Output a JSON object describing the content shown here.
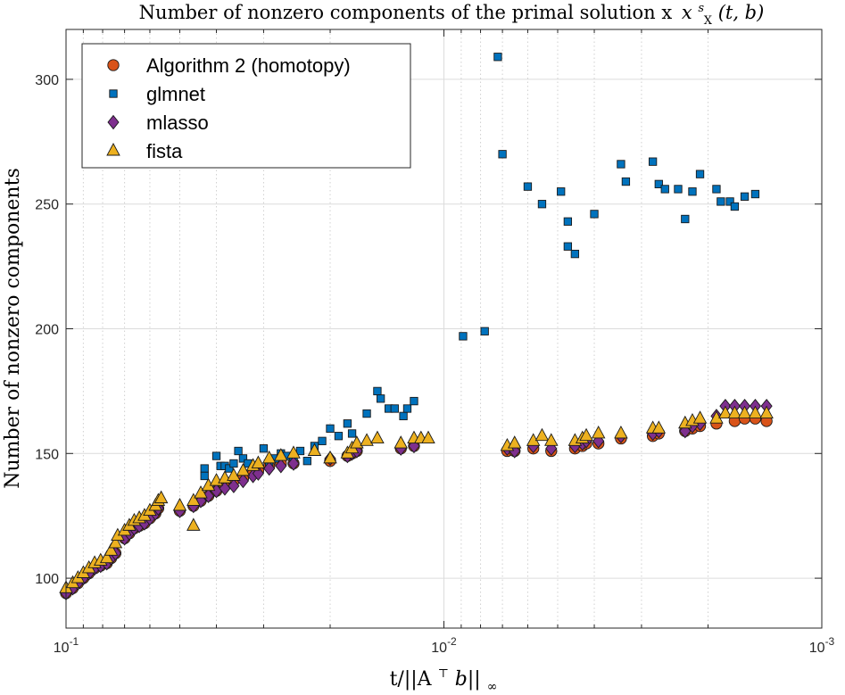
{
  "chart_data": {
    "type": "scatter",
    "title": "Number of nonzero components of the primal solution x",
    "title_math": {
      "base": "x",
      "sup": "s",
      "sub": "X",
      "args": "(t, b)"
    },
    "xlabel": "t/||A",
    "xlabel_math": {
      "sup": "⊤",
      "mid": "b||",
      "sub": "∞"
    },
    "ylabel": "Number of nonzero components",
    "xscale": "log",
    "x_reversed": true,
    "xlim": [
      0.1,
      0.001
    ],
    "ylim": [
      80,
      320
    ],
    "grid": true,
    "legend_position": "top-left",
    "x_ticks": [
      {
        "value": 0.1,
        "base": "10",
        "exp": "-1"
      },
      {
        "value": 0.01,
        "base": "10",
        "exp": "-2"
      },
      {
        "value": 0.001,
        "base": "10",
        "exp": "-3"
      }
    ],
    "y_ticks": [
      100,
      150,
      200,
      250,
      300
    ],
    "series": [
      {
        "name": "Algorithm 2 (homotopy)",
        "marker": "circle",
        "color": "#D95319",
        "points": [
          [
            0.1,
            94
          ],
          [
            0.096,
            96
          ],
          [
            0.093,
            98
          ],
          [
            0.09,
            100
          ],
          [
            0.087,
            102
          ],
          [
            0.084,
            104
          ],
          [
            0.081,
            105
          ],
          [
            0.078,
            106
          ],
          [
            0.076,
            108
          ],
          [
            0.074,
            110
          ],
          [
            0.07,
            116
          ],
          [
            0.068,
            118
          ],
          [
            0.066,
            120
          ],
          [
            0.064,
            121
          ],
          [
            0.062,
            122
          ],
          [
            0.06,
            124
          ],
          [
            0.058,
            126
          ],
          [
            0.057,
            128
          ],
          [
            0.05,
            127
          ],
          [
            0.046,
            129
          ],
          [
            0.044,
            131
          ],
          [
            0.042,
            133
          ],
          [
            0.04,
            135
          ],
          [
            0.038,
            137
          ],
          [
            0.036,
            139
          ],
          [
            0.034,
            140
          ],
          [
            0.032,
            142
          ],
          [
            0.031,
            143
          ],
          [
            0.029,
            145
          ],
          [
            0.027,
            146
          ],
          [
            0.025,
            146
          ],
          [
            0.02,
            147
          ],
          [
            0.018,
            149
          ],
          [
            0.0175,
            150
          ],
          [
            0.017,
            151
          ],
          [
            0.013,
            152
          ],
          [
            0.012,
            153
          ],
          [
            0.0068,
            151
          ],
          [
            0.0065,
            151
          ],
          [
            0.0058,
            152
          ],
          [
            0.0052,
            151
          ],
          [
            0.0045,
            152
          ],
          [
            0.0043,
            153
          ],
          [
            0.0042,
            154
          ],
          [
            0.0039,
            154
          ],
          [
            0.0034,
            156
          ],
          [
            0.0028,
            157
          ],
          [
            0.0027,
            158
          ],
          [
            0.0023,
            159
          ],
          [
            0.0022,
            160
          ],
          [
            0.0021,
            161
          ],
          [
            0.0019,
            162
          ],
          [
            0.0017,
            163
          ],
          [
            0.0016,
            164
          ],
          [
            0.0015,
            164
          ],
          [
            0.0014,
            163
          ]
        ]
      },
      {
        "name": "glmnet",
        "marker": "square",
        "color": "#0072BD",
        "points": [
          [
            0.043,
            144
          ],
          [
            0.043,
            141
          ],
          [
            0.04,
            149
          ],
          [
            0.039,
            145
          ],
          [
            0.038,
            145
          ],
          [
            0.037,
            144
          ],
          [
            0.036,
            146
          ],
          [
            0.035,
            151
          ],
          [
            0.034,
            148
          ],
          [
            0.033,
            146
          ],
          [
            0.03,
            152
          ],
          [
            0.029,
            146
          ],
          [
            0.028,
            148
          ],
          [
            0.027,
            150
          ],
          [
            0.026,
            149
          ],
          [
            0.025,
            148
          ],
          [
            0.024,
            151
          ],
          [
            0.023,
            147
          ],
          [
            0.022,
            153
          ],
          [
            0.021,
            155
          ],
          [
            0.02,
            160
          ],
          [
            0.019,
            157
          ],
          [
            0.018,
            162
          ],
          [
            0.0175,
            158
          ],
          [
            0.016,
            166
          ],
          [
            0.015,
            175
          ],
          [
            0.0147,
            172
          ],
          [
            0.014,
            168
          ],
          [
            0.0135,
            168
          ],
          [
            0.0128,
            165
          ],
          [
            0.0125,
            168
          ],
          [
            0.012,
            171
          ],
          [
            0.0089,
            197
          ],
          [
            0.0078,
            199
          ],
          [
            0.0072,
            309
          ],
          [
            0.007,
            270
          ],
          [
            0.006,
            257
          ],
          [
            0.0055,
            250
          ],
          [
            0.0049,
            255
          ],
          [
            0.0047,
            243
          ],
          [
            0.0047,
            233
          ],
          [
            0.0045,
            230
          ],
          [
            0.004,
            246
          ],
          [
            0.0034,
            266
          ],
          [
            0.0033,
            259
          ],
          [
            0.0028,
            267
          ],
          [
            0.0027,
            258
          ],
          [
            0.0026,
            256
          ],
          [
            0.0024,
            256
          ],
          [
            0.0023,
            244
          ],
          [
            0.0022,
            255
          ],
          [
            0.0021,
            262
          ],
          [
            0.0019,
            256
          ],
          [
            0.00185,
            251
          ],
          [
            0.00175,
            251
          ],
          [
            0.0017,
            249
          ],
          [
            0.0016,
            253
          ],
          [
            0.0015,
            254
          ]
        ]
      },
      {
        "name": "mlasso",
        "marker": "diamond",
        "color": "#7E2F8E",
        "points": [
          [
            0.1,
            94
          ],
          [
            0.096,
            96
          ],
          [
            0.093,
            98
          ],
          [
            0.09,
            100
          ],
          [
            0.087,
            102
          ],
          [
            0.084,
            104
          ],
          [
            0.081,
            105
          ],
          [
            0.078,
            106
          ],
          [
            0.076,
            108
          ],
          [
            0.074,
            110
          ],
          [
            0.07,
            116
          ],
          [
            0.068,
            118
          ],
          [
            0.066,
            120
          ],
          [
            0.064,
            121
          ],
          [
            0.062,
            122
          ],
          [
            0.06,
            124
          ],
          [
            0.058,
            126
          ],
          [
            0.057,
            128
          ],
          [
            0.05,
            127
          ],
          [
            0.046,
            129
          ],
          [
            0.044,
            131
          ],
          [
            0.042,
            133
          ],
          [
            0.04,
            135
          ],
          [
            0.038,
            136
          ],
          [
            0.036,
            137
          ],
          [
            0.034,
            139
          ],
          [
            0.032,
            141
          ],
          [
            0.031,
            142
          ],
          [
            0.029,
            144
          ],
          [
            0.027,
            145
          ],
          [
            0.025,
            146
          ],
          [
            0.02,
            148
          ],
          [
            0.018,
            149
          ],
          [
            0.0175,
            150
          ],
          [
            0.017,
            151
          ],
          [
            0.013,
            152
          ],
          [
            0.012,
            153
          ],
          [
            0.0068,
            152
          ],
          [
            0.0065,
            151
          ],
          [
            0.0058,
            153
          ],
          [
            0.0052,
            152
          ],
          [
            0.0045,
            153
          ],
          [
            0.0043,
            154
          ],
          [
            0.0042,
            155
          ],
          [
            0.0039,
            155
          ],
          [
            0.0034,
            157
          ],
          [
            0.0028,
            158
          ],
          [
            0.0027,
            159
          ],
          [
            0.0023,
            159
          ],
          [
            0.0022,
            161
          ],
          [
            0.0021,
            162
          ],
          [
            0.0019,
            165
          ],
          [
            0.0018,
            169
          ],
          [
            0.0017,
            169
          ],
          [
            0.0016,
            169
          ],
          [
            0.0015,
            169
          ],
          [
            0.0014,
            169
          ]
        ]
      },
      {
        "name": "fista",
        "marker": "triangle",
        "color": "#EDB120",
        "points": [
          [
            0.1,
            96
          ],
          [
            0.096,
            98
          ],
          [
            0.093,
            100
          ],
          [
            0.09,
            102
          ],
          [
            0.087,
            104
          ],
          [
            0.084,
            106
          ],
          [
            0.081,
            107
          ],
          [
            0.078,
            108
          ],
          [
            0.076,
            111
          ],
          [
            0.074,
            114
          ],
          [
            0.073,
            117
          ],
          [
            0.07,
            119
          ],
          [
            0.068,
            121
          ],
          [
            0.066,
            123
          ],
          [
            0.064,
            124
          ],
          [
            0.062,
            125
          ],
          [
            0.06,
            127
          ],
          [
            0.058,
            129
          ],
          [
            0.057,
            131
          ],
          [
            0.056,
            132
          ],
          [
            0.05,
            129
          ],
          [
            0.046,
            131
          ],
          [
            0.046,
            121
          ],
          [
            0.044,
            134
          ],
          [
            0.042,
            137
          ],
          [
            0.04,
            139
          ],
          [
            0.038,
            140
          ],
          [
            0.036,
            141
          ],
          [
            0.034,
            143
          ],
          [
            0.032,
            145
          ],
          [
            0.031,
            146
          ],
          [
            0.029,
            148
          ],
          [
            0.027,
            149
          ],
          [
            0.025,
            150
          ],
          [
            0.022,
            151
          ],
          [
            0.02,
            148
          ],
          [
            0.018,
            150
          ],
          [
            0.0175,
            152
          ],
          [
            0.017,
            154
          ],
          [
            0.016,
            155
          ],
          [
            0.015,
            156
          ],
          [
            0.013,
            154
          ],
          [
            0.012,
            156
          ],
          [
            0.0115,
            156
          ],
          [
            0.011,
            156
          ],
          [
            0.0068,
            153
          ],
          [
            0.0065,
            154
          ],
          [
            0.0058,
            155
          ],
          [
            0.0055,
            157
          ],
          [
            0.0052,
            155
          ],
          [
            0.0045,
            155
          ],
          [
            0.0043,
            156
          ],
          [
            0.0042,
            157
          ],
          [
            0.0039,
            158
          ],
          [
            0.0034,
            158
          ],
          [
            0.0028,
            160
          ],
          [
            0.0027,
            160
          ],
          [
            0.0023,
            162
          ],
          [
            0.0022,
            163
          ],
          [
            0.0021,
            164
          ],
          [
            0.0019,
            164
          ],
          [
            0.0018,
            166
          ],
          [
            0.0017,
            166
          ],
          [
            0.0016,
            166
          ],
          [
            0.0015,
            166
          ],
          [
            0.0014,
            166
          ]
        ]
      }
    ]
  }
}
